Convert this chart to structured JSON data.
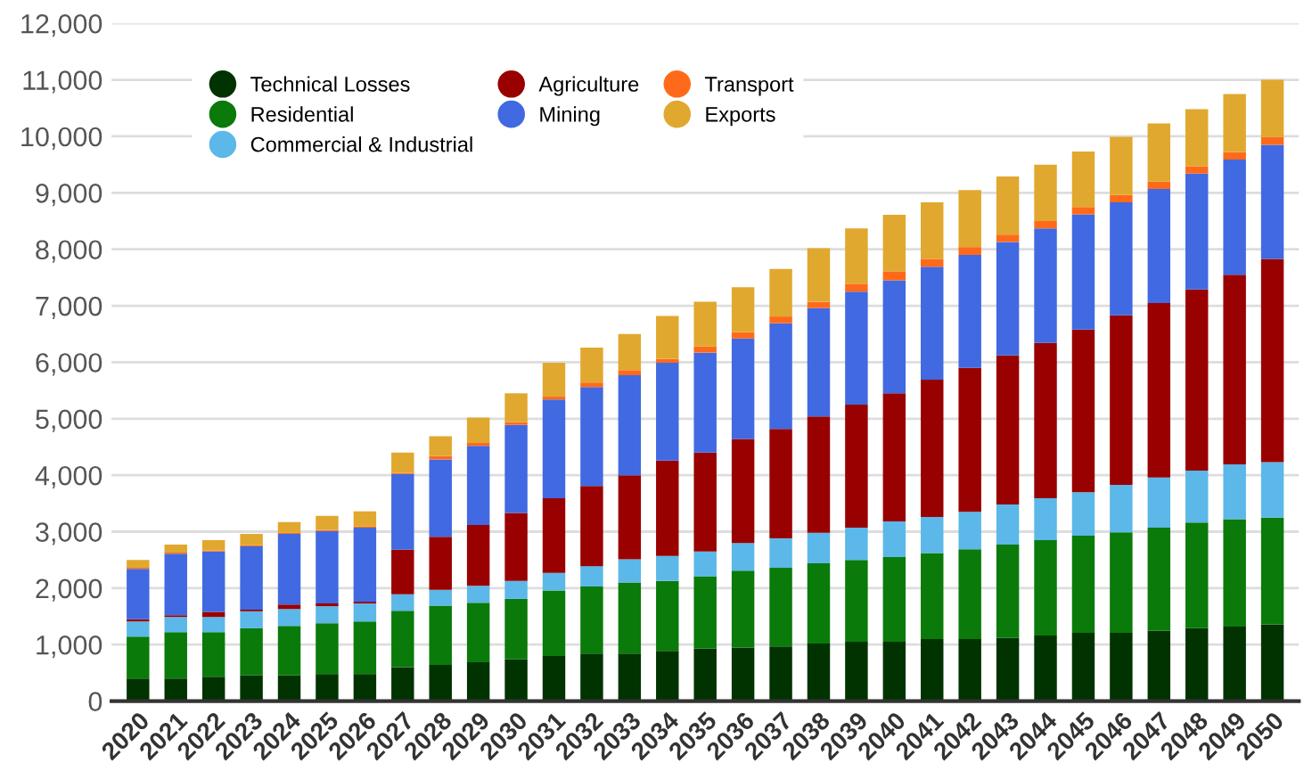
{
  "chart_data": {
    "type": "bar",
    "stacked": true,
    "categories": [
      "2020",
      "2021",
      "2022",
      "2023",
      "2024",
      "2025",
      "2026",
      "2027",
      "2028",
      "2029",
      "2030",
      "2031",
      "2032",
      "2033",
      "2034",
      "2035",
      "2036",
      "2037",
      "2038",
      "2039",
      "2040",
      "2041",
      "2042",
      "2043",
      "2044",
      "2045",
      "2046",
      "2047",
      "2048",
      "2049",
      "2050"
    ],
    "series": [
      {
        "name": "Technical Losses",
        "color": "#003300",
        "values": [
          400,
          400,
          430,
          460,
          460,
          480,
          480,
          600,
          640,
          690,
          740,
          800,
          840,
          840,
          890,
          930,
          950,
          970,
          1020,
          1050,
          1050,
          1100,
          1100,
          1120,
          1160,
          1210,
          1210,
          1250,
          1290,
          1320,
          1360
        ]
      },
      {
        "name": "Residential",
        "color": "#0a7a0a",
        "values": [
          740,
          820,
          790,
          830,
          870,
          900,
          930,
          1000,
          1050,
          1050,
          1070,
          1160,
          1190,
          1260,
          1240,
          1280,
          1360,
          1390,
          1420,
          1450,
          1500,
          1520,
          1590,
          1650,
          1690,
          1720,
          1780,
          1820,
          1870,
          1900,
          1890
        ]
      },
      {
        "name": "Commercial & Industrial",
        "color": "#5bb8e8",
        "values": [
          270,
          270,
          270,
          300,
          300,
          300,
          320,
          290,
          280,
          300,
          320,
          310,
          360,
          410,
          440,
          440,
          490,
          520,
          540,
          570,
          630,
          640,
          660,
          710,
          740,
          770,
          840,
          890,
          920,
          970,
          980
        ]
      },
      {
        "name": "Agriculture",
        "color": "#990000",
        "values": [
          40,
          30,
          90,
          30,
          80,
          50,
          30,
          790,
          940,
          1080,
          1200,
          1320,
          1420,
          1490,
          1690,
          1750,
          1840,
          1940,
          2060,
          2180,
          2270,
          2430,
          2550,
          2640,
          2750,
          2880,
          3000,
          3090,
          3210,
          3360,
          3600
        ]
      },
      {
        "name": "Mining",
        "color": "#4169e1",
        "values": [
          890,
          1090,
          1070,
          1120,
          1250,
          1280,
          1310,
          1340,
          1370,
          1400,
          1560,
          1750,
          1750,
          1770,
          1730,
          1770,
          1780,
          1870,
          1920,
          2000,
          2000,
          2000,
          2000,
          2010,
          2030,
          2040,
          2000,
          2020,
          2050,
          2040,
          2020
        ]
      },
      {
        "name": "Transport",
        "color": "#ff6a1a",
        "values": [
          20,
          20,
          20,
          20,
          20,
          20,
          20,
          20,
          60,
          50,
          50,
          50,
          80,
          90,
          70,
          110,
          110,
          120,
          110,
          140,
          160,
          140,
          140,
          130,
          130,
          130,
          130,
          130,
          130,
          130,
          140
        ]
      },
      {
        "name": "Exports",
        "color": "#e0a82e",
        "values": [
          140,
          140,
          180,
          200,
          190,
          250,
          270,
          360,
          350,
          450,
          510,
          600,
          620,
          640,
          760,
          790,
          800,
          840,
          950,
          980,
          1000,
          1000,
          1010,
          1030,
          1000,
          980,
          1030,
          1030,
          1010,
          1030,
          1010
        ]
      }
    ],
    "ylim": [
      0,
      12000
    ],
    "yticks": [
      0,
      {
        "value": 1000,
        "label": "1,000"
      },
      {
        "value": 2000,
        "label": "2,000"
      },
      {
        "value": 3000,
        "label": "3,000"
      },
      {
        "value": 4000,
        "label": "4,000"
      },
      {
        "value": 5000,
        "label": "5,000"
      },
      {
        "value": 6000,
        "label": "6,000"
      },
      {
        "value": 7000,
        "label": "7,000"
      },
      {
        "value": 8000,
        "label": "8,000"
      },
      {
        "value": 9000,
        "label": "9,000"
      },
      {
        "value": 10000,
        "label": "10,000"
      },
      {
        "value": 11000,
        "label": "11,000"
      },
      {
        "value": 12000,
        "label": "12,000"
      }
    ],
    "grid": "y",
    "legend": "top left"
  }
}
